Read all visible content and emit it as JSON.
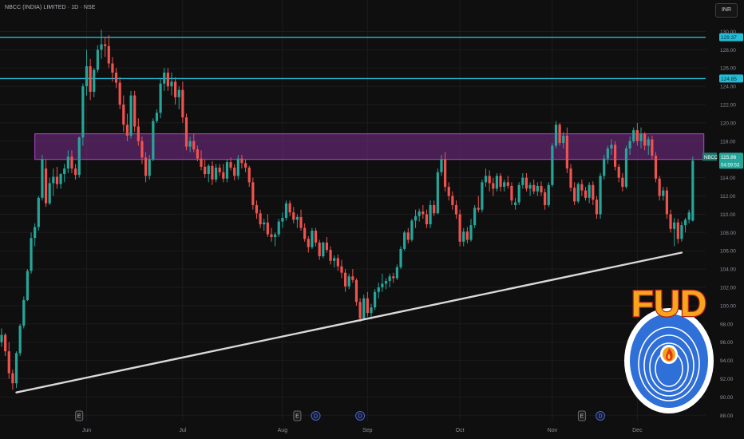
{
  "header": {
    "title": "NBCC (INDIA) LIMITED · 1D · NSE",
    "currency": "INR"
  },
  "colors": {
    "background": "#0f0f0f",
    "up": "#26a69a",
    "down": "#ef5350",
    "hline": "#22bdd6",
    "zone_fill": "#7b2d8e",
    "zone_border": "#b04bcc",
    "trendline": "#d9d9d9",
    "grid": "#1c1c1c",
    "axis_text": "#8b8f99"
  },
  "price_tag": {
    "symbol": "NBCC",
    "price": "115.86",
    "countdown": "04:59:53"
  },
  "chart_data": {
    "type": "candlestick",
    "ylim": [
      87.5,
      131
    ],
    "y_ticks": [
      "88.00",
      "90.00",
      "92.00",
      "94.00",
      "96.00",
      "98.00",
      "100.00",
      "102.00",
      "104.00",
      "106.00",
      "108.00",
      "110.00",
      "112.00",
      "114.00",
      "116.00",
      "118.00",
      "120.00",
      "122.00",
      "124.00",
      "126.00",
      "128.00",
      "130.00"
    ],
    "x_labels": [
      {
        "label": "Jun",
        "i": 23
      },
      {
        "label": "Jul",
        "i": 49
      },
      {
        "label": "Aug",
        "i": 76
      },
      {
        "label": "Sep",
        "i": 99
      },
      {
        "label": "Oct",
        "i": 124
      },
      {
        "label": "Nov",
        "i": 149
      },
      {
        "label": "Dec",
        "i": 172
      }
    ],
    "horizontal_lines": [
      {
        "value": 129.37,
        "label": "129.37"
      },
      {
        "value": 124.85,
        "label": "124.85"
      }
    ],
    "zone": {
      "from_i": 9,
      "to_i": 190,
      "low": 116.0,
      "high": 118.8
    },
    "trendline": {
      "from_i": 4,
      "from_value": 90.5,
      "to_i": 184,
      "to_value": 105.8
    },
    "events": [
      {
        "type": "E",
        "i": 21
      },
      {
        "type": "E",
        "i": 80
      },
      {
        "type": "D",
        "i": 85
      },
      {
        "type": "D",
        "i": 97
      },
      {
        "type": "E",
        "i": 157
      },
      {
        "type": "D",
        "i": 162
      }
    ],
    "candles": [
      [
        96,
        97.5,
        95.5,
        96.8
      ],
      [
        96.8,
        97,
        94.5,
        95
      ],
      [
        95,
        96,
        92,
        92.6
      ],
      [
        92.6,
        93,
        90.8,
        91.5
      ],
      [
        91.5,
        95,
        91,
        94.8
      ],
      [
        94.8,
        98,
        94.5,
        97.8
      ],
      [
        97.8,
        101,
        97.5,
        100.6
      ],
      [
        100.6,
        104,
        100.5,
        103.8
      ],
      [
        103.8,
        108,
        103.5,
        107.4
      ],
      [
        107.4,
        109,
        106.5,
        108.6
      ],
      [
        108.6,
        112,
        108.2,
        111.8
      ],
      [
        111.8,
        116.5,
        111.5,
        116
      ],
      [
        115,
        116,
        110.8,
        111.2
      ],
      [
        111.2,
        114,
        111,
        113.4
      ],
      [
        113.4,
        115,
        112,
        114.1
      ],
      [
        114.1,
        115.2,
        112.8,
        113.3
      ],
      [
        113.3,
        114.5,
        112.8,
        114.4
      ],
      [
        114.4,
        115.5,
        113.5,
        115
      ],
      [
        115,
        117,
        114.5,
        116.3
      ],
      [
        116.3,
        117,
        114.5,
        115
      ],
      [
        115,
        115.5,
        113.8,
        114.3
      ],
      [
        114.3,
        118.5,
        114,
        118.4
      ],
      [
        118.4,
        124.3,
        117.5,
        124
      ],
      [
        124,
        128,
        123,
        126.2
      ],
      [
        126.2,
        127,
        122.5,
        123.4
      ],
      [
        123.4,
        126,
        122.8,
        125.8
      ],
      [
        125.8,
        128.5,
        125.5,
        128
      ],
      [
        128,
        130.2,
        127,
        128.6
      ],
      [
        128.6,
        129.4,
        127.2,
        128.4
      ],
      [
        128.4,
        129.6,
        126,
        126.5
      ],
      [
        126.5,
        127.2,
        124.5,
        125.5
      ],
      [
        125.5,
        126,
        123.8,
        124.4
      ],
      [
        124.4,
        125,
        121.5,
        122
      ],
      [
        122,
        123,
        119,
        119.8
      ],
      [
        119.8,
        121,
        118,
        118.6
      ],
      [
        118.6,
        123.5,
        118.3,
        123
      ],
      [
        123,
        123.5,
        119,
        119.6
      ],
      [
        119.6,
        120.5,
        117.5,
        118
      ],
      [
        118,
        118.5,
        115.5,
        116.2
      ],
      [
        116.2,
        116.8,
        113.5,
        114.2
      ],
      [
        114.2,
        116.5,
        113.8,
        116
      ],
      [
        116,
        120.5,
        115.8,
        120.2
      ],
      [
        120.2,
        121.5,
        120,
        121.1
      ],
      [
        121.1,
        124.8,
        120.5,
        124.3
      ],
      [
        124.3,
        126,
        123.5,
        125.5
      ],
      [
        125.5,
        126,
        123.5,
        124
      ],
      [
        124,
        125.5,
        123,
        124.5
      ],
      [
        124.5,
        125,
        122,
        122.8
      ],
      [
        122.8,
        124,
        121.5,
        123.6
      ],
      [
        123.6,
        124.5,
        120,
        120.6
      ],
      [
        120.6,
        121,
        117,
        117.4
      ],
      [
        117.4,
        118.5,
        116.8,
        118
      ],
      [
        118,
        118.8,
        116.8,
        117.1
      ],
      [
        117.1,
        117.5,
        115.8,
        116.1
      ],
      [
        116.1,
        117,
        114.8,
        115.2
      ],
      [
        115.2,
        116,
        114,
        114.4
      ],
      [
        114.4,
        115.5,
        113.5,
        115.3
      ],
      [
        115.3,
        115.8,
        113.2,
        113.8
      ],
      [
        113.8,
        115.5,
        113.5,
        115.1
      ],
      [
        115.1,
        115.5,
        114.2,
        114.6
      ],
      [
        114.6,
        115.5,
        113.5,
        113.9
      ],
      [
        113.9,
        116,
        113.5,
        115.7
      ],
      [
        115.7,
        116.2,
        114.8,
        115.1
      ],
      [
        115.1,
        115.5,
        113.7,
        114.2
      ],
      [
        114.2,
        116.5,
        113.8,
        116.1
      ],
      [
        116.1,
        116.5,
        115,
        115.6
      ],
      [
        115.6,
        116,
        114.6,
        115.1
      ],
      [
        115.1,
        115.3,
        113,
        113.5
      ],
      [
        113.5,
        114,
        110.5,
        111
      ],
      [
        111,
        111.5,
        109.5,
        110.1
      ],
      [
        110.1,
        110.5,
        108.5,
        108.9
      ],
      [
        108.9,
        109.5,
        108.2,
        109.1
      ],
      [
        109.1,
        110,
        107.5,
        107.8
      ],
      [
        107.8,
        108.5,
        107,
        107.5
      ],
      [
        107.5,
        108,
        106.5,
        107.8
      ],
      [
        107.8,
        109.5,
        107.5,
        109.2
      ],
      [
        109.2,
        110.2,
        108.5,
        109.6
      ],
      [
        109.6,
        111.5,
        109.3,
        111.2
      ],
      [
        111.2,
        111.5,
        109.8,
        110.2
      ],
      [
        110.2,
        110.8,
        109,
        109.4
      ],
      [
        109.4,
        110,
        108.5,
        109.7
      ],
      [
        109.7,
        110.5,
        108.2,
        108.5
      ],
      [
        108.5,
        109,
        107,
        107.3
      ],
      [
        107.3,
        107.6,
        105.8,
        106.4
      ],
      [
        106.4,
        108.5,
        106.2,
        108.2
      ],
      [
        108.2,
        108.5,
        106.5,
        106.9
      ],
      [
        106.9,
        107.2,
        105,
        105.4
      ],
      [
        105.4,
        107,
        105.2,
        106.9
      ],
      [
        106.9,
        107.5,
        105.8,
        106.1
      ],
      [
        106.1,
        106.5,
        104.5,
        104.9
      ],
      [
        104.9,
        105.5,
        104.2,
        105.2
      ],
      [
        105.2,
        105.6,
        103.8,
        104.3
      ],
      [
        104.3,
        105,
        103,
        103.6
      ],
      [
        103.6,
        104,
        101.5,
        102.1
      ],
      [
        102.1,
        103.5,
        101.8,
        103.2
      ],
      [
        103.2,
        104,
        102.5,
        102.8
      ],
      [
        102.8,
        103,
        100,
        100.4
      ],
      [
        100.4,
        100.8,
        98.2,
        98.6
      ],
      [
        98.6,
        101.2,
        98.4,
        100.8
      ],
      [
        100.8,
        101.5,
        98.8,
        99.2
      ],
      [
        99.2,
        100.2,
        98.5,
        99.8
      ],
      [
        99.8,
        101.8,
        99.5,
        101.5
      ],
      [
        101.5,
        102.5,
        100.8,
        102
      ],
      [
        102,
        103.5,
        101.5,
        102.4
      ],
      [
        102.4,
        103,
        101.8,
        102.7
      ],
      [
        102.7,
        103.5,
        102,
        103.2
      ],
      [
        103.2,
        103.6,
        102.5,
        103
      ],
      [
        103,
        104.5,
        102.8,
        104.2
      ],
      [
        104.2,
        106.5,
        104,
        106.2
      ],
      [
        106.2,
        108.2,
        106,
        108
      ],
      [
        108,
        108.5,
        106.8,
        107.2
      ],
      [
        107.2,
        109.5,
        107,
        109.3
      ],
      [
        109.3,
        110.5,
        108.5,
        109.8
      ],
      [
        109.8,
        110.6,
        109.2,
        110.3
      ],
      [
        110.3,
        111,
        109.5,
        110
      ],
      [
        110,
        110.5,
        108.5,
        108.9
      ],
      [
        108.9,
        111.5,
        108.5,
        111
      ],
      [
        111,
        111.5,
        109.8,
        110.1
      ],
      [
        110.1,
        115,
        110,
        114.6
      ],
      [
        114.6,
        116.5,
        114.2,
        116
      ],
      [
        116,
        116.8,
        112.5,
        113
      ],
      [
        113,
        113.5,
        111.5,
        112
      ],
      [
        112,
        112.5,
        110.5,
        111
      ],
      [
        111,
        111.5,
        109.5,
        110
      ],
      [
        110,
        110.5,
        106.5,
        107
      ],
      [
        107,
        108.5,
        106.5,
        108.1
      ],
      [
        108.1,
        108.6,
        106.8,
        107.2
      ],
      [
        107.2,
        109.5,
        107,
        108.8
      ],
      [
        108.8,
        111,
        108.5,
        110.7
      ],
      [
        110.7,
        112,
        110.2,
        110.5
      ],
      [
        110.5,
        113.8,
        110.2,
        113.5
      ],
      [
        113.5,
        115,
        113,
        114.2
      ],
      [
        114.2,
        114.8,
        112.5,
        113.4
      ],
      [
        113.4,
        114,
        112,
        112.8
      ],
      [
        112.8,
        114.5,
        112.5,
        114.2
      ],
      [
        114.2,
        114.5,
        112.5,
        113
      ],
      [
        113,
        113.8,
        112.5,
        113.5
      ],
      [
        113.5,
        114.2,
        112.8,
        113.1
      ],
      [
        113.1,
        113.5,
        111,
        111.5
      ],
      [
        111,
        111.8,
        110.5,
        111.3
      ],
      [
        111.3,
        113.5,
        111,
        113.2
      ],
      [
        113.2,
        114.5,
        112.8,
        114
      ],
      [
        114,
        114.5,
        112.5,
        112.8
      ],
      [
        112.8,
        113.5,
        112,
        113.2
      ],
      [
        113.2,
        113.8,
        112.2,
        112.5
      ],
      [
        112.5,
        113.5,
        112,
        113.1
      ],
      [
        113.1,
        113.6,
        112,
        112.4
      ],
      [
        112.4,
        112.8,
        110.5,
        111
      ],
      [
        111,
        113.5,
        110.8,
        113.2
      ],
      [
        113.2,
        117.8,
        113,
        117.5
      ],
      [
        117.5,
        120.2,
        117.2,
        119.8
      ],
      [
        119.8,
        120,
        117.5,
        117.8
      ],
      [
        117.8,
        119,
        117.2,
        118.6
      ],
      [
        118.6,
        119.5,
        114.5,
        115
      ],
      [
        115,
        115.5,
        112.5,
        112.9
      ],
      [
        112.9,
        113.5,
        111,
        111.4
      ],
      [
        111.4,
        113.5,
        111.2,
        113.3
      ],
      [
        113.3,
        113.8,
        112,
        112.6
      ],
      [
        112.6,
        113,
        111.5,
        111.8
      ],
      [
        111.8,
        113.5,
        111.2,
        113.2
      ],
      [
        113.2,
        113.6,
        111,
        111.6
      ],
      [
        111.6,
        112,
        109.5,
        110
      ],
      [
        110,
        114.5,
        109.5,
        114.2
      ],
      [
        114.2,
        116.5,
        113.8,
        116.1
      ],
      [
        116.1,
        117.5,
        115.5,
        117.2
      ],
      [
        117.2,
        118.2,
        116.5,
        117.6
      ],
      [
        117.6,
        118,
        114.8,
        115.2
      ],
      [
        115.2,
        115.5,
        113.5,
        114
      ],
      [
        114,
        114.5,
        112.5,
        113
      ],
      [
        113,
        117.5,
        112.8,
        117.2
      ],
      [
        117.2,
        118.5,
        116.5,
        118
      ],
      [
        118,
        119.5,
        117.8,
        119.2
      ],
      [
        119.2,
        120,
        117.5,
        118
      ],
      [
        118,
        119.5,
        117.2,
        118.8
      ],
      [
        118.8,
        119,
        117,
        117.5
      ],
      [
        117.5,
        118.5,
        116.5,
        118.2
      ],
      [
        118.2,
        118.6,
        116,
        116.4
      ],
      [
        116.4,
        116.8,
        113.5,
        113.9
      ],
      [
        113.9,
        114.2,
        111.5,
        112
      ],
      [
        112,
        113,
        111.5,
        112.6
      ],
      [
        112.6,
        113,
        109.5,
        110
      ],
      [
        110,
        110.5,
        108,
        108.4
      ],
      [
        108.4,
        109.6,
        106.5,
        109.1
      ],
      [
        109.1,
        109.5,
        106.8,
        107.3
      ],
      [
        107.3,
        109.2,
        107,
        108.8
      ],
      [
        108.8,
        109.6,
        108,
        109.4
      ],
      [
        109.4,
        110.5,
        109,
        110.2
      ],
      [
        109.3,
        116.3,
        109.2,
        115.86
      ]
    ]
  }
}
